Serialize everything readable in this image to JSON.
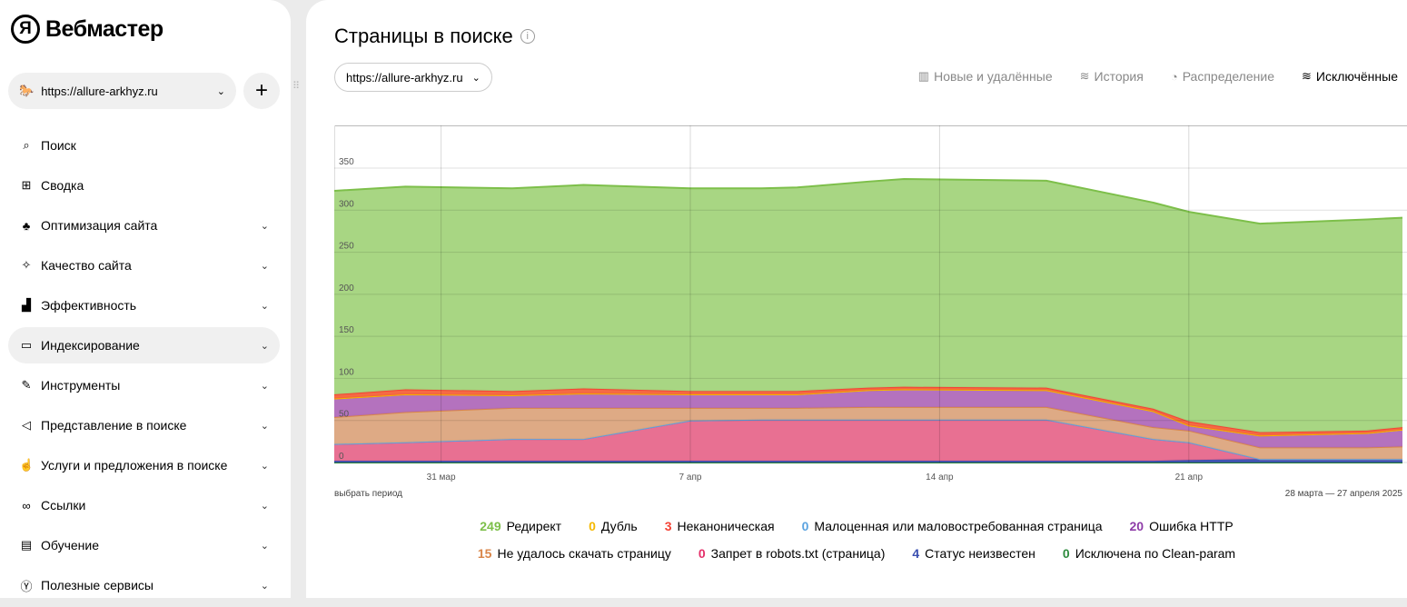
{
  "app": {
    "logo_mark": "Я",
    "logo_text": "Вебмастер"
  },
  "site_selector": {
    "value": "https://allure-arkhyz.ru",
    "add_label": "+"
  },
  "nav": [
    {
      "label": "Поиск",
      "icon": "search-icon",
      "glyph": "⌕",
      "chev": false
    },
    {
      "label": "Сводка",
      "icon": "grid-icon",
      "glyph": "⊞",
      "chev": false
    },
    {
      "label": "Оптимизация сайта",
      "icon": "sitemap-icon",
      "glyph": "♣",
      "chev": true
    },
    {
      "label": "Качество сайта",
      "icon": "magic-wand-icon",
      "glyph": "✧",
      "chev": true
    },
    {
      "label": "Эффективность",
      "icon": "bar-chart-icon",
      "glyph": "▟",
      "chev": true
    },
    {
      "label": "Индексирование",
      "icon": "monitor-icon",
      "glyph": "▭",
      "chev": true,
      "active": true
    },
    {
      "label": "Инструменты",
      "icon": "wrench-icon",
      "glyph": "✎",
      "chev": true
    },
    {
      "label": "Представление в поиске",
      "icon": "megaphone-icon",
      "glyph": "◁",
      "chev": true
    },
    {
      "label": "Услуги и предложения в поиске",
      "icon": "hand-icon",
      "glyph": "☝",
      "chev": true
    },
    {
      "label": "Ссылки",
      "icon": "link-icon",
      "glyph": "∞",
      "chev": true
    },
    {
      "label": "Обучение",
      "icon": "book-icon",
      "glyph": "▤",
      "chev": true
    },
    {
      "label": "Полезные сервисы",
      "icon": "yandex-services-icon",
      "glyph": "Ⓨ",
      "chev": true
    }
  ],
  "page": {
    "title": "Страницы в поиске",
    "url_select": "https://allure-arkhyz.ru"
  },
  "tabs": [
    {
      "label": "Новые и удалённые",
      "icon": "bar-chart-icon",
      "glyph": "▥"
    },
    {
      "label": "История",
      "icon": "area-chart-icon",
      "glyph": "≋"
    },
    {
      "label": "Распределение",
      "icon": "pie-chart-icon",
      "glyph": "◔"
    },
    {
      "label": "Исключённые",
      "icon": "area-chart-icon",
      "glyph": "≋",
      "active": true
    }
  ],
  "footer": {
    "select_period": "выбрать период",
    "range": "28 марта — 27 апреля 2025"
  },
  "chart_data": {
    "type": "area",
    "stacked": true,
    "x_days_from_start": [
      0,
      2,
      5,
      7,
      10,
      12,
      13,
      15,
      16,
      20,
      23,
      24,
      26,
      29,
      30
    ],
    "xlim": [
      0,
      30
    ],
    "ylim": [
      0,
      350
    ],
    "yticks": [
      0,
      50,
      100,
      150,
      200,
      250,
      300,
      350
    ],
    "xticks": [
      {
        "day": 3,
        "label": "31 мар"
      },
      {
        "day": 10,
        "label": "7 апр"
      },
      {
        "day": 17,
        "label": "14 апр"
      },
      {
        "day": 24,
        "label": "21 апр"
      }
    ],
    "grid": true,
    "series": [
      {
        "name": "Исключена по Clean-param",
        "total": "0",
        "color": "#2e8b3e",
        "fill": "#2e8b3e",
        "values": [
          0,
          0,
          0,
          0,
          0,
          0,
          0,
          0,
          0,
          0,
          0,
          0,
          0,
          0,
          0
        ]
      },
      {
        "name": "Статус неизвестен",
        "total": "4",
        "color": "#3a4fb0",
        "fill": "#3a4fb0",
        "values": [
          2,
          2,
          2,
          2,
          2,
          2,
          2,
          2,
          2,
          2,
          2,
          3,
          4,
          4,
          4
        ]
      },
      {
        "name": "Запрет в robots.txt (страница)",
        "total": "0",
        "color": "#e5306a",
        "fill": "#e7688c",
        "values": [
          20,
          22,
          26,
          26,
          48,
          49,
          49,
          49,
          49,
          49,
          26,
          21,
          0,
          0,
          0
        ]
      },
      {
        "name": "Малоценная или маловостребованная страница",
        "total": "0",
        "color": "#5ba3e0",
        "fill": "#5ba3e0",
        "values": [
          0,
          0,
          0,
          0,
          0,
          0,
          0,
          0,
          0,
          0,
          0,
          0,
          0,
          0,
          0
        ]
      },
      {
        "name": "Не удалось скачать страницу",
        "total": "15",
        "color": "#d9864a",
        "fill": "#dca57e",
        "values": [
          32,
          36,
          37,
          37,
          15,
          14,
          14,
          15,
          15,
          15,
          14,
          14,
          14,
          14,
          15
        ]
      },
      {
        "name": "Ошибка HTTP",
        "total": "20",
        "color": "#8e3ca8",
        "fill": "#b06abb",
        "values": [
          22,
          21,
          15,
          17,
          16,
          16,
          16,
          20,
          21,
          20,
          19,
          6,
          14,
          17,
          20
        ]
      },
      {
        "name": "Дубль",
        "total": "0",
        "color": "#f5b800",
        "fill": "#f5b800",
        "values": [
          0,
          0,
          0,
          0,
          0,
          0,
          0,
          0,
          0,
          0,
          0,
          0,
          0,
          0,
          0
        ]
      },
      {
        "name": "Неканоническая",
        "total": "3",
        "color": "#f44336",
        "fill": "#f4623a",
        "values": [
          5,
          6,
          5,
          6,
          4,
          4,
          4,
          3,
          3,
          3,
          3,
          5,
          4,
          3,
          3
        ]
      },
      {
        "name": "Редирект",
        "total": "249",
        "color": "#7dbf4a",
        "fill": "#a3d47c",
        "values": [
          242,
          241,
          241,
          242,
          241,
          241,
          242,
          245,
          247,
          246,
          245,
          249,
          248,
          251,
          249
        ]
      }
    ],
    "legend_order": [
      8,
      6,
      7,
      3,
      5,
      4,
      2,
      1,
      0
    ]
  }
}
